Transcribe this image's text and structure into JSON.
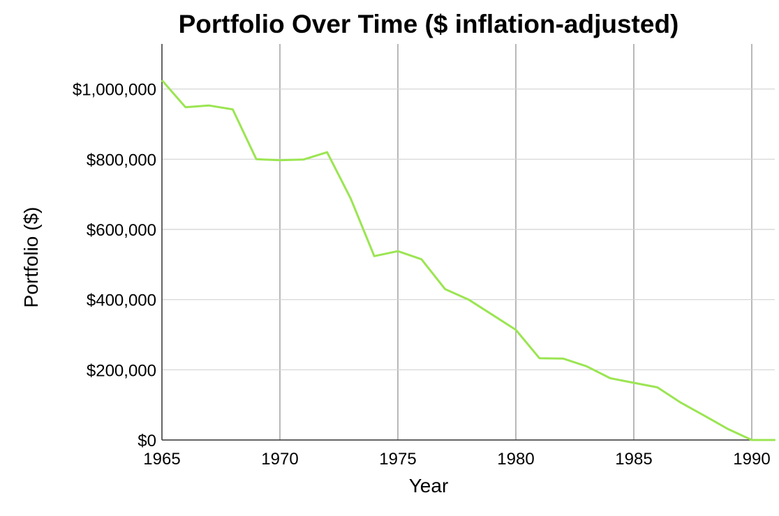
{
  "chart_data": {
    "type": "line",
    "title": "Portfolio Over Time ($ inflation-adjusted)",
    "xlabel": "Year",
    "ylabel": "Portfolio ($)",
    "xlim": [
      1965,
      1991
    ],
    "ylim": [
      0,
      1100000
    ],
    "x_ticks": [
      1965,
      1970,
      1975,
      1980,
      1985,
      1990
    ],
    "y_ticks": [
      0,
      200000,
      400000,
      600000,
      800000,
      1000000
    ],
    "y_tick_labels": [
      "$0",
      "$200,000",
      "$400,000",
      "$600,000",
      "$800,000",
      "$1,000,000"
    ],
    "grid": true,
    "series": [
      {
        "color": "#9be552",
        "x": [
          1965,
          1966,
          1967,
          1968,
          1969,
          1970,
          1971,
          1972,
          1973,
          1974,
          1975,
          1976,
          1977,
          1978,
          1979,
          1980,
          1981,
          1982,
          1983,
          1984,
          1985,
          1986,
          1987,
          1988,
          1989,
          1990,
          1991
        ],
        "y": [
          1025000,
          948000,
          953000,
          942000,
          800000,
          797000,
          799000,
          820000,
          688000,
          524000,
          538000,
          515000,
          430000,
          400000,
          357000,
          314000,
          233000,
          232000,
          210000,
          176000,
          163000,
          150000,
          106000,
          69000,
          31000,
          0,
          0
        ]
      }
    ]
  }
}
